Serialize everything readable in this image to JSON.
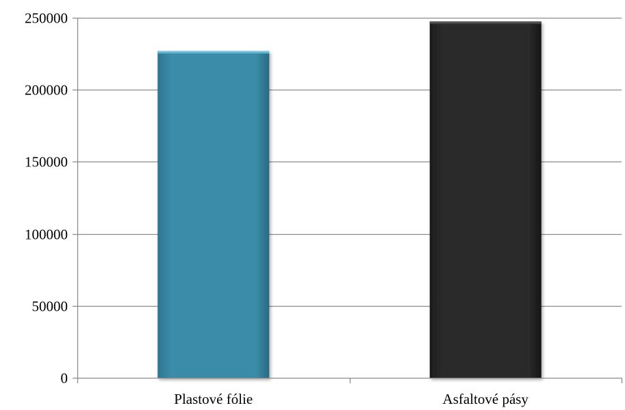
{
  "chart_data": {
    "type": "bar",
    "title": "",
    "xlabel": "",
    "ylabel": "",
    "categories": [
      "Plastové fólie",
      "Asfaltové pásy"
    ],
    "values": [
      227000,
      247500
    ],
    "ylim": [
      0,
      250000
    ],
    "yticks": [
      0,
      50000,
      100000,
      150000,
      200000,
      250000
    ],
    "ytick_labels": [
      "0",
      "50000",
      "100000",
      "150000",
      "200000",
      "250000"
    ],
    "grid": true,
    "legend": "none",
    "colors": [
      "#3a8aa6",
      "#2a2a2a"
    ],
    "gridline_color": "#8c8c8c"
  }
}
